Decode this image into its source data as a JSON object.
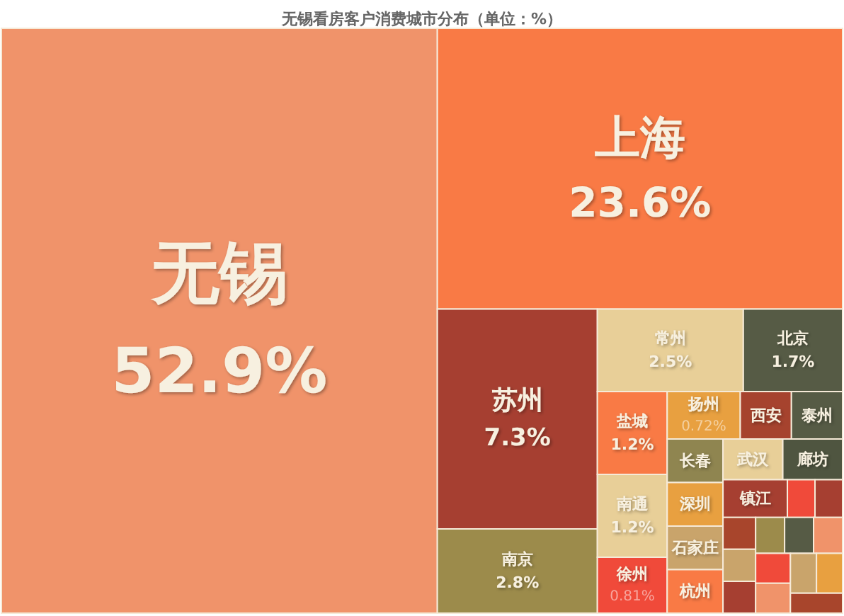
{
  "chart_data": {
    "type": "other",
    "title": "无锡看房客户消费城市分布（单位：%）",
    "categories": [
      "无锡",
      "上海",
      "苏州",
      "南京",
      "常州",
      "北京",
      "盐城",
      "南通",
      "徐州",
      "扬州",
      "西安",
      "泰州",
      "长春",
      "深圳",
      "石家庄",
      "杭州",
      "武汉",
      "廊坊",
      "镇江",
      null,
      null,
      null,
      null,
      null,
      null,
      null,
      null,
      null,
      null,
      null,
      null,
      null
    ],
    "values": [
      52.9,
      23.6,
      7.3,
      2.8,
      2.5,
      1.7,
      1.2,
      1.2,
      0.81,
      0.72,
      null,
      null,
      null,
      null,
      null,
      null,
      null,
      null,
      null,
      null,
      null,
      null,
      null,
      null,
      null,
      null,
      null,
      null,
      null,
      null,
      null,
      null
    ],
    "value_labels": [
      "52.9%",
      "23.6%",
      "7.3%",
      "2.8%",
      "2.5%",
      "1.7%",
      "1.2%",
      "1.2%",
      "0.81%",
      "0.72%",
      null,
      null,
      null,
      null,
      null,
      null,
      null,
      null,
      null,
      null,
      null,
      null,
      null,
      null,
      null,
      null,
      null,
      null,
      null,
      null,
      null,
      null
    ],
    "colors": [
      "#f0936a",
      "#f97a45",
      "#a63f31",
      "#9c8b4b",
      "#e8cf98",
      "#565b45",
      "#f97a45",
      "#e8cf98",
      "#f04a3a",
      "#e8a040",
      "#a6432e",
      "#565b45",
      "#8f8550",
      "#e8a040",
      "#c9a46b",
      "#f97a45",
      "#e8cf98",
      "#4f5540",
      "#a63f31",
      "#f04a3a",
      "#a63f31",
      "#a8452c",
      "#c9a46b",
      "#a63f31",
      "#9c8b4b",
      "#565b45",
      "#f0936a",
      "#f04a3a",
      "#f0936a",
      "#c9a46b",
      "#e8a040",
      "#a8452c"
    ]
  }
}
